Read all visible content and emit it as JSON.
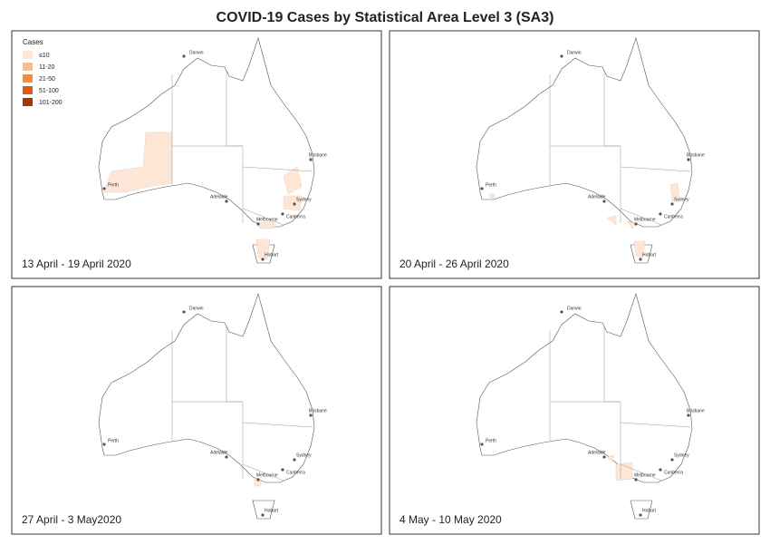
{
  "title": "COVID-19 Cases by Statistical Area Level 3 (SA3)",
  "legend": {
    "title": "Cases",
    "items": [
      {
        "label": "≤10",
        "color": "#fde6d6"
      },
      {
        "label": "11-20",
        "color": "#f8bd8c"
      },
      {
        "label": "21-50",
        "color": "#f28c45"
      },
      {
        "label": "51-100",
        "color": "#e05a17"
      },
      {
        "label": "101-200",
        "color": "#9c3a0c"
      }
    ]
  },
  "cities": [
    "Darwin",
    "Perth",
    "Adelaide",
    "Melbourne",
    "Canberra",
    "Sydney",
    "Brisbane",
    "Hobart"
  ],
  "panels": [
    {
      "label": "13 April - 19 April 2020"
    },
    {
      "label": "20 April - 26 April 2020"
    },
    {
      "label": "27 April - 3 May2020"
    },
    {
      "label": "4 May - 10 May 2020"
    }
  ]
}
